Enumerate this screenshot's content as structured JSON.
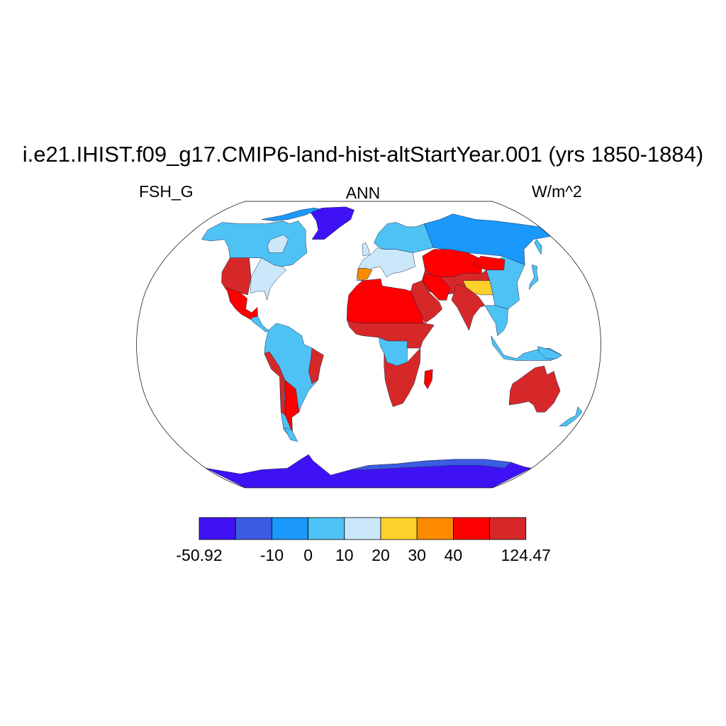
{
  "map": {
    "title": "i.e21.IHIST.f09_g17.CMIP6-land-hist-altStartYear.001 (yrs 1850-1884)",
    "variable": "FSH_G",
    "period": "ANN",
    "units": "W/m^2",
    "projection": "robinson",
    "colorbar": {
      "colors": [
        "#3f12f5",
        "#3b5ce2",
        "#1a98fb",
        "#4fc2f5",
        "#cbe8fa",
        "#fed02a",
        "#fe8a00",
        "#fe0000",
        "#d62828"
      ],
      "labels": [
        "-50.92",
        "",
        "-10",
        "0",
        "10",
        "20",
        "30",
        "40",
        "",
        "124.47"
      ]
    },
    "ocean_color": "#ffffff"
  }
}
